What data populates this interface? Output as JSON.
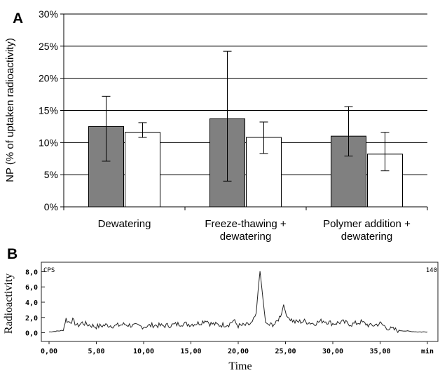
{
  "chart_data": [
    {
      "panel_label": "A",
      "type": "bar",
      "ylabel": "NP (% of uptaken radioactivity)",
      "ylim": [
        0,
        30
      ],
      "yticks": [
        "0%",
        "5%",
        "10%",
        "15%",
        "20%",
        "25%",
        "30%"
      ],
      "categories": [
        "Dewatering",
        "Freeze-thawing + dewatering",
        "Polymer addition + dewatering"
      ],
      "category_lines": [
        [
          "Dewatering"
        ],
        [
          "Freeze-thawing +",
          "dewatering"
        ],
        [
          "Polymer addition +",
          "dewatering"
        ]
      ],
      "grid": "horizontal",
      "series": [
        {
          "color": "#808080",
          "values": [
            12.5,
            13.7,
            11.0
          ],
          "err_low": [
            7.1,
            4.0,
            7.9
          ],
          "err_high": [
            17.2,
            24.2,
            15.6
          ]
        },
        {
          "color": "#ffffff",
          "values": [
            11.6,
            10.8,
            8.2
          ],
          "err_low": [
            10.8,
            8.3,
            5.6
          ],
          "err_high": [
            13.1,
            13.2,
            11.6
          ]
        }
      ]
    },
    {
      "panel_label": "B",
      "type": "line",
      "xlabel": "Time",
      "ylabel": "Radioactivity",
      "ylim": [
        -0.5,
        8.5
      ],
      "xlim": [
        0,
        40
      ],
      "yticks": [
        "8,0",
        "6,0",
        "4,0",
        "2,0",
        "0,0"
      ],
      "xticks": [
        "0,00",
        "5,00",
        "10,00",
        "15,00",
        "20,00",
        "25,00",
        "30,00",
        "35,00",
        "min"
      ],
      "corner_left": "CPS",
      "corner_right": "140",
      "x": [
        0.0,
        1.5,
        1.8,
        2.0,
        2.5,
        3.0,
        3.5,
        4.0,
        5.0,
        6.0,
        7.0,
        8.0,
        9.0,
        10.0,
        11.0,
        12.0,
        13.0,
        14.0,
        15.0,
        16.0,
        16.6,
        17.0,
        18.0,
        19.0,
        19.5,
        20.0,
        21.0,
        21.5,
        21.9,
        22.1,
        22.3,
        22.6,
        22.9,
        23.3,
        24.0,
        24.6,
        24.8,
        25.1,
        25.5,
        26.0,
        27.0,
        28.0,
        29.0,
        30.0,
        31.0,
        32.0,
        33.0,
        34.0,
        35.0,
        35.7,
        36.0,
        37.0,
        38.0,
        39.0,
        40.0
      ],
      "y": [
        0.1,
        0.3,
        1.8,
        1.4,
        1.6,
        0.9,
        1.3,
        1.1,
        0.8,
        1.0,
        0.9,
        1.1,
        0.9,
        0.8,
        1.0,
        0.9,
        1.0,
        1.2,
        1.1,
        1.3,
        1.7,
        1.2,
        1.0,
        1.1,
        1.6,
        0.9,
        1.0,
        1.3,
        2.5,
        5.5,
        8.1,
        4.6,
        1.3,
        1.0,
        1.2,
        2.6,
        3.7,
        2.2,
        1.8,
        1.4,
        1.5,
        1.2,
        1.6,
        1.2,
        1.4,
        1.1,
        1.4,
        0.9,
        1.2,
        0.7,
        0.5,
        0.3,
        0.2,
        0.1,
        0.1
      ]
    }
  ]
}
